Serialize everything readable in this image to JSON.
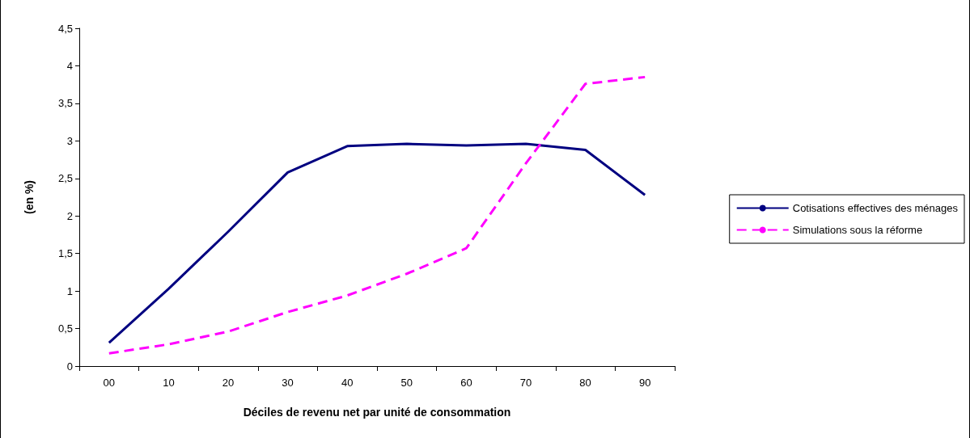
{
  "chart_data": {
    "type": "line",
    "xlabel": "Déciles de revenu net par unité de consommation",
    "ylabel": "(en %)",
    "categories": [
      "00",
      "10",
      "20",
      "30",
      "40",
      "50",
      "60",
      "70",
      "80",
      "90"
    ],
    "series": [
      {
        "name": "Cotisations effectives des ménages",
        "color": "#000080",
        "line_style": "solid",
        "values": [
          0.31,
          1.03,
          1.79,
          2.58,
          2.93,
          2.96,
          2.94,
          2.96,
          2.88,
          2.28
        ]
      },
      {
        "name": "Simulations sous la réforme",
        "color": "#ff00ff",
        "line_style": "dashed",
        "values": [
          0.17,
          0.29,
          0.46,
          0.72,
          0.94,
          1.23,
          1.57,
          2.7,
          3.76,
          3.85
        ]
      }
    ],
    "ylim": [
      0,
      4.5
    ],
    "yticks": [
      0,
      {
        "value": 0.5,
        "label": "0,5"
      },
      1,
      {
        "value": 1.5,
        "label": "1,5"
      },
      2,
      {
        "value": 2.5,
        "label": "2,5"
      },
      3,
      {
        "value": 3.5,
        "label": "3,5"
      },
      4,
      {
        "value": 4.5,
        "label": "4,5"
      }
    ],
    "grid": false,
    "legend": "right",
    "marker": "none"
  }
}
